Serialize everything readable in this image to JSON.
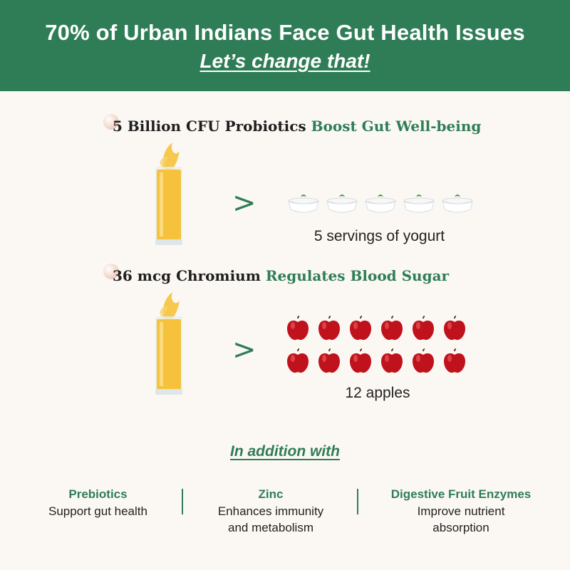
{
  "header": {
    "title": "70% of Urban Indians Face Gut Health Issues",
    "subtitle": "Let’s change that!"
  },
  "sections": [
    {
      "lead": "5 Billion CFU Probiotics",
      "highlight": "Boost Gut Well-being",
      "comparator": ">",
      "item_icon": "yogurt-bowl-icon",
      "item_count": 5,
      "caption": "5 servings of yogurt"
    },
    {
      "lead": "36 mcg Chromium",
      "highlight": "Regulates Blood Sugar",
      "comparator": ">",
      "item_icon": "apple-icon",
      "item_count": 12,
      "caption": "12 apples"
    }
  ],
  "addition_heading": "In addition with",
  "benefits": [
    {
      "title": "Prebiotics",
      "description": "Support gut health"
    },
    {
      "title": "Zinc",
      "description": "Enhances immunity\nand metabolism"
    },
    {
      "title": "Digestive Fruit Enzymes",
      "description": "Improve nutrient\nabsorption"
    }
  ],
  "colors": {
    "brand_green": "#2f7d57",
    "juice": "#f6c23c",
    "apple": "#c0121c",
    "background": "#fbf8f3"
  }
}
